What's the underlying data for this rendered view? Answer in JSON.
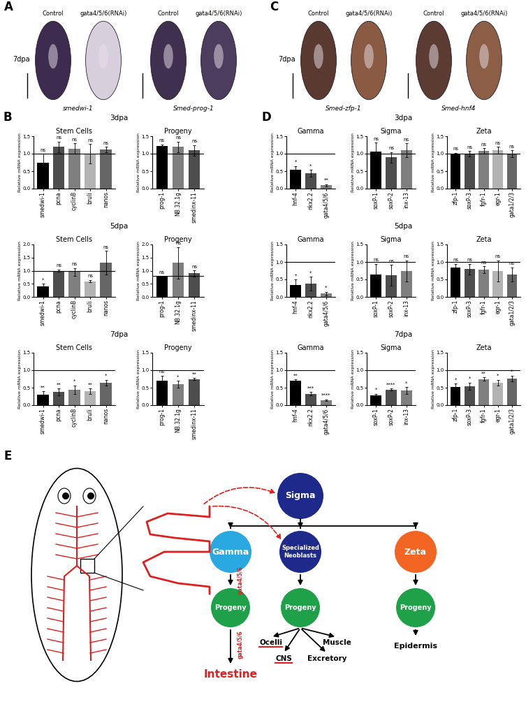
{
  "panels": [
    {
      "label": "A",
      "time": "7dpa",
      "conditions": [
        "Control",
        "gata4/5/6(RNAi)"
      ],
      "genes": [
        "smedwi-1",
        "Smed-prog-1"
      ]
    },
    {
      "label": "C",
      "time": "7dpa",
      "conditions": [
        "Control",
        "gata4/5/6(RNAi)"
      ],
      "genes": [
        "Smed-zfp-1",
        "Smed-hnf4"
      ]
    }
  ],
  "chart_data": [
    {
      "type": "bar",
      "panel": "B",
      "row_label": "3dpa",
      "title": "Stem Cells",
      "y_label": "Relative mRNA expression",
      "categories": [
        "smedwi-1",
        "pcna",
        "cyclinB",
        "bruli",
        "nanos"
      ],
      "values": [
        0.75,
        1.2,
        1.15,
        1.0,
        1.12
      ],
      "errors": [
        0.25,
        0.15,
        0.15,
        0.28,
        0.08
      ],
      "significance": [
        "ns",
        "ns",
        "ns",
        "ns",
        "ns"
      ],
      "colors": [
        "#000000",
        "#4d4d4d",
        "#7f7f7f",
        "#b3b3b3",
        "#666666"
      ],
      "ylim": [
        0.0,
        1.5
      ],
      "yticks": [
        0.0,
        0.5,
        1.0,
        1.5
      ],
      "reference_line": 1.0
    },
    {
      "type": "bar",
      "panel": "B",
      "row_label": "3dpa",
      "title": "Progeny",
      "y_label": "Relative mRNA expression",
      "categories": [
        "prog-1",
        "NB.32.1g",
        "smedinx-11"
      ],
      "values": [
        1.22,
        1.2,
        1.1
      ],
      "errors": [
        0.05,
        0.15,
        0.15
      ],
      "significance": [
        "ns",
        "ns",
        "ns"
      ],
      "colors": [
        "#000000",
        "#7f7f7f",
        "#4d4d4d"
      ],
      "ylim": [
        0.0,
        1.5
      ],
      "yticks": [
        0.0,
        0.5,
        1.0,
        1.5
      ],
      "reference_line": 1.0
    },
    {
      "type": "bar",
      "panel": "B",
      "row_label": "5dpa",
      "title": "Stem Cells",
      "y_label": "Relative mRNA expression",
      "categories": [
        "smedwi-1",
        "pcna",
        "cyclinB",
        "bruli",
        "nanos"
      ],
      "values": [
        0.4,
        1.0,
        0.95,
        0.6,
        1.3
      ],
      "errors": [
        0.1,
        0.05,
        0.15,
        0.05,
        0.45
      ],
      "significance": [
        "*",
        "ns",
        "ns",
        "ns",
        "ns"
      ],
      "colors": [
        "#000000",
        "#4d4d4d",
        "#7f7f7f",
        "#b3b3b3",
        "#666666"
      ],
      "ylim": [
        0.0,
        2.0
      ],
      "yticks": [
        0.0,
        0.5,
        1.0,
        1.5,
        2.0
      ],
      "reference_line": 1.0
    },
    {
      "type": "bar",
      "panel": "B",
      "row_label": "5dpa",
      "title": "Progeny",
      "y_label": "Relative mRNA expression",
      "categories": [
        "prog-1",
        "NB.32.1g",
        "smedinx-11"
      ],
      "values": [
        0.78,
        1.3,
        0.9
      ],
      "errors": [
        0.0,
        0.6,
        0.12
      ],
      "significance": [
        "ns",
        "ns",
        "ns"
      ],
      "colors": [
        "#000000",
        "#7f7f7f",
        "#4d4d4d"
      ],
      "ylim": [
        0.0,
        2.0
      ],
      "yticks": [
        0.0,
        0.5,
        1.0,
        1.5,
        2.0
      ],
      "reference_line": 0.8
    },
    {
      "type": "bar",
      "panel": "B",
      "row_label": "7dpa",
      "title": "Stem Cells",
      "y_label": "Relative mRNA expression",
      "categories": [
        "smedwi-1",
        "pcna",
        "cyclinB",
        "bruli",
        "nanos"
      ],
      "values": [
        0.3,
        0.38,
        0.45,
        0.4,
        0.65
      ],
      "errors": [
        0.1,
        0.1,
        0.12,
        0.08,
        0.08
      ],
      "significance": [
        "**",
        "**",
        "*",
        "**",
        "*"
      ],
      "colors": [
        "#000000",
        "#4d4d4d",
        "#7f7f7f",
        "#b3b3b3",
        "#666666"
      ],
      "ylim": [
        0.0,
        1.5
      ],
      "yticks": [
        0.0,
        0.5,
        1.0,
        1.5
      ],
      "reference_line": 1.0
    },
    {
      "type": "bar",
      "panel": "B",
      "row_label": "7dpa",
      "title": "Progeny",
      "y_label": "Relative mRNA expression",
      "categories": [
        "prog-1",
        "NB.32.1g",
        "smedinx-11"
      ],
      "values": [
        0.7,
        0.6,
        0.75
      ],
      "errors": [
        0.15,
        0.1,
        0.03
      ],
      "significance": [
        "ns",
        "*",
        "**"
      ],
      "colors": [
        "#000000",
        "#7f7f7f",
        "#4d4d4d"
      ],
      "ylim": [
        0.0,
        1.5
      ],
      "yticks": [
        0.0,
        0.5,
        1.0,
        1.5
      ],
      "reference_line": 1.0
    },
    {
      "type": "bar",
      "panel": "D",
      "row_label": "3dpa",
      "title": "Gamma",
      "y_label": "Relative mRNA expression",
      "categories": [
        "hnf-4",
        "nkx2.2",
        "gata4/5/6"
      ],
      "values": [
        0.55,
        0.45,
        0.1
      ],
      "errors": [
        0.1,
        0.1,
        0.03
      ],
      "significance": [
        "*",
        "*",
        "**"
      ],
      "colors": [
        "#000000",
        "#4d4d4d",
        "#7f7f7f"
      ],
      "ylim": [
        0.0,
        1.5
      ],
      "yticks": [
        0.0,
        0.5,
        1.0,
        1.5
      ],
      "reference_line": 1.0
    },
    {
      "type": "bar",
      "panel": "D",
      "row_label": "3dpa",
      "title": "Sigma",
      "y_label": "Relative mRNA expression",
      "categories": [
        "soxP-1",
        "soxP-2",
        "inx-13"
      ],
      "values": [
        1.07,
        0.9,
        1.1
      ],
      "errors": [
        0.25,
        0.15,
        0.2
      ],
      "significance": [
        "ns",
        "ns",
        "ns"
      ],
      "colors": [
        "#000000",
        "#4d4d4d",
        "#7f7f7f"
      ],
      "ylim": [
        0.0,
        1.5
      ],
      "yticks": [
        0.0,
        0.5,
        1.0,
        1.5
      ],
      "reference_line": 1.0
    },
    {
      "type": "bar",
      "panel": "D",
      "row_label": "3dpa",
      "title": "Zeta",
      "y_label": "Relative mRNA expression",
      "categories": [
        "zfp-1",
        "soxP-3",
        "fgfr-1",
        "egr-1",
        "gata1/2/3"
      ],
      "values": [
        1.0,
        1.0,
        1.08,
        1.1,
        1.0
      ],
      "errors": [
        0.03,
        0.08,
        0.08,
        0.1,
        0.1
      ],
      "significance": [
        "ns",
        "ns",
        "ns",
        "ns",
        "ns"
      ],
      "colors": [
        "#000000",
        "#4d4d4d",
        "#7f7f7f",
        "#b3b3b3",
        "#666666"
      ],
      "ylim": [
        0.0,
        1.5
      ],
      "yticks": [
        0.0,
        0.5,
        1.0,
        1.5
      ],
      "reference_line": 1.0
    },
    {
      "type": "bar",
      "panel": "D",
      "row_label": "5dpa",
      "title": "Gamma",
      "y_label": "Relative mRNA expression",
      "categories": [
        "hnf-4",
        "nkx2.2",
        "gata4/5/6"
      ],
      "values": [
        0.35,
        0.38,
        0.1
      ],
      "errors": [
        0.15,
        0.2,
        0.05
      ],
      "significance": [
        "*",
        "*",
        "*"
      ],
      "colors": [
        "#000000",
        "#4d4d4d",
        "#7f7f7f"
      ],
      "ylim": [
        0.0,
        1.5
      ],
      "yticks": [
        0.0,
        0.5,
        1.0,
        1.5
      ],
      "reference_line": 1.0
    },
    {
      "type": "bar",
      "panel": "D",
      "row_label": "5dpa",
      "title": "Sigma",
      "y_label": "Relative mRNA expression",
      "categories": [
        "soxP-1",
        "soxP-2",
        "inx-13"
      ],
      "values": [
        0.65,
        0.62,
        0.75
      ],
      "errors": [
        0.3,
        0.3,
        0.3
      ],
      "significance": [
        "ns",
        "ns",
        "ns"
      ],
      "colors": [
        "#000000",
        "#4d4d4d",
        "#7f7f7f"
      ],
      "ylim": [
        0.0,
        1.5
      ],
      "yticks": [
        0.0,
        0.5,
        1.0,
        1.5
      ],
      "reference_line": 1.0
    },
    {
      "type": "bar",
      "panel": "D",
      "row_label": "5dpa",
      "title": "Zeta",
      "y_label": "Relative mRNA expression",
      "categories": [
        "zfp-1",
        "soxP-3",
        "fgfr-1",
        "egr-1",
        "gata1/2/3"
      ],
      "values": [
        0.85,
        0.8,
        0.78,
        0.75,
        0.65
      ],
      "errors": [
        0.1,
        0.15,
        0.1,
        0.3,
        0.2
      ],
      "significance": [
        "ns",
        "ns",
        "ns",
        "ns",
        "ns"
      ],
      "colors": [
        "#000000",
        "#4d4d4d",
        "#7f7f7f",
        "#b3b3b3",
        "#666666"
      ],
      "ylim": [
        0.0,
        1.5
      ],
      "yticks": [
        0.0,
        0.5,
        1.0,
        1.5
      ],
      "reference_line": 1.0
    },
    {
      "type": "bar",
      "panel": "D",
      "row_label": "7dpa",
      "title": "Gamma",
      "y_label": "Relative mRNA expression",
      "categories": [
        "hnf-4",
        "nkx2.2",
        "gata4/5/6"
      ],
      "values": [
        0.7,
        0.33,
        0.15
      ],
      "errors": [
        0.05,
        0.05,
        0.02
      ],
      "significance": [
        "**",
        "***",
        "****"
      ],
      "colors": [
        "#000000",
        "#4d4d4d",
        "#7f7f7f"
      ],
      "ylim": [
        0.0,
        1.5
      ],
      "yticks": [
        0.0,
        0.5,
        1.0,
        1.5
      ],
      "reference_line": 1.0
    },
    {
      "type": "bar",
      "panel": "D",
      "row_label": "7dpa",
      "title": "Sigma",
      "y_label": "Relative mRNA expression",
      "categories": [
        "soxP-1",
        "soxP-2",
        "inx-13"
      ],
      "values": [
        0.28,
        0.45,
        0.42
      ],
      "errors": [
        0.05,
        0.03,
        0.1
      ],
      "significance": [
        "*",
        "****",
        "*"
      ],
      "colors": [
        "#000000",
        "#4d4d4d",
        "#7f7f7f"
      ],
      "ylim": [
        0.0,
        1.5
      ],
      "yticks": [
        0.0,
        0.5,
        1.0,
        1.5
      ],
      "reference_line": 1.0
    },
    {
      "type": "bar",
      "panel": "D",
      "row_label": "7dpa",
      "title": "Zeta",
      "y_label": "Relative mRNA expression",
      "categories": [
        "zfp-1",
        "soxP-3",
        "fgfr-1",
        "egr-1",
        "gata1/2/3"
      ],
      "values": [
        0.52,
        0.55,
        0.75,
        0.65,
        0.77
      ],
      "errors": [
        0.1,
        0.1,
        0.05,
        0.08,
        0.08
      ],
      "significance": [
        "*",
        "*",
        "**",
        "*",
        "*"
      ],
      "colors": [
        "#000000",
        "#4d4d4d",
        "#7f7f7f",
        "#b3b3b3",
        "#666666"
      ],
      "ylim": [
        0.0,
        1.5
      ],
      "yticks": [
        0.0,
        0.5,
        1.0,
        1.5
      ],
      "reference_line": 1.0
    }
  ],
  "diagram": {
    "label": "E",
    "sigma": "Sigma",
    "gamma": "Gamma",
    "specialized": "Specialized Neoblasts",
    "zeta": "Zeta",
    "progeny": [
      "Progeny",
      "Progeny",
      "Progeny"
    ],
    "gamma_gene_labels": [
      "gata4/5/6",
      "gata4/5/6"
    ],
    "gamma_outputs": [
      "Intestine"
    ],
    "specialized_outputs": [
      "Ocelli",
      "CNS",
      "Excretory",
      "Muscle"
    ],
    "zeta_outputs": [
      "Epidermis"
    ],
    "highlighted": [
      "Intestine",
      "Ocelli",
      "CNS"
    ]
  }
}
